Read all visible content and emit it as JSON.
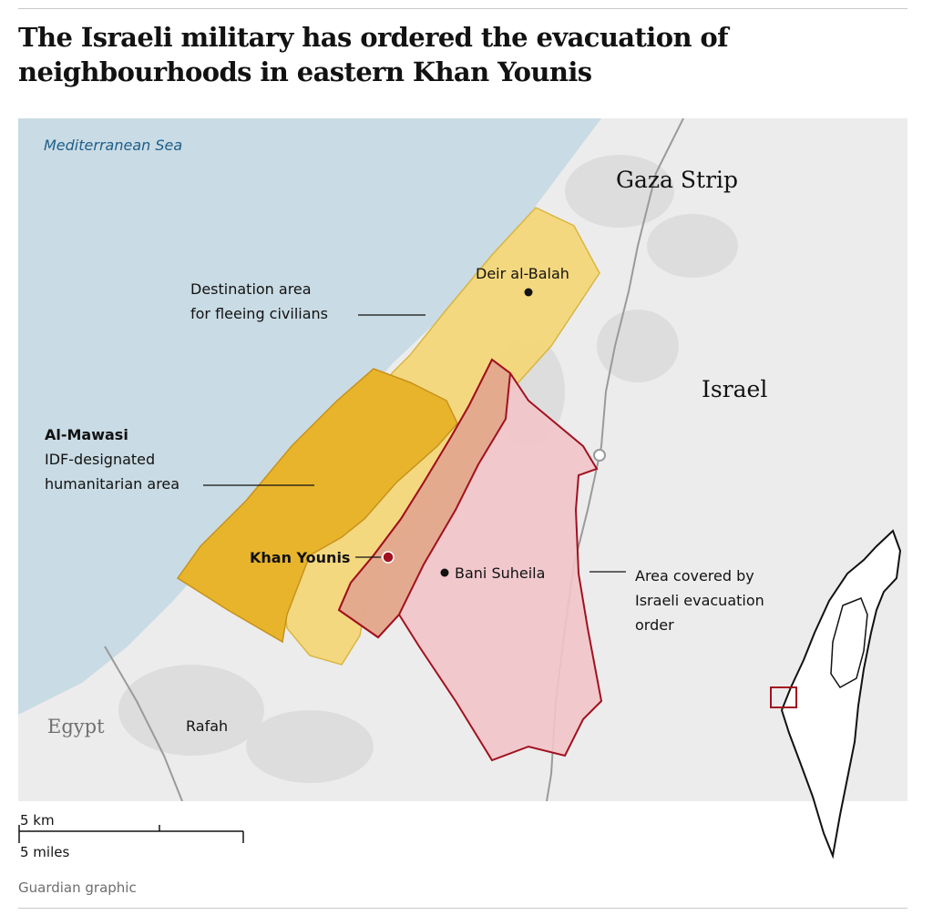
{
  "title": "The Israeli military has ordered the evacuation of neighbourhoods in eastern Khan Younis",
  "map": {
    "sea_label": "Mediterranean Sea",
    "regions": {
      "gaza_strip": "Gaza Strip",
      "israel": "Israel",
      "egypt": "Egypt"
    },
    "places": {
      "deir_al_balah": "Deir al-Balah",
      "khan_younis": "Khan Younis",
      "bani_suheila": "Bani Suheila",
      "rafah": "Rafah"
    },
    "annotations": {
      "destination_line1": "Destination area",
      "destination_line2": "for fleeing civilians",
      "mawasi_title": "Al-Mawasi",
      "mawasi_line2": "IDF-designated",
      "mawasi_line3": "humanitarian area",
      "evac_line1": "Area covered by",
      "evac_line2": "Israeli evacuation",
      "evac_line3": "order"
    },
    "colors": {
      "sea": "#c9dbe4",
      "land": "#ececec",
      "destination_area": "#f5d77a",
      "mawasi_area": "#e8b42c",
      "evacuation_area": "#f2c4c9",
      "evacuation_border": "#a1111f",
      "khan_younis_marker": "#a1111f"
    }
  },
  "scale": {
    "km_label": "5 km",
    "miles_label": "5 miles"
  },
  "source": "Guardian graphic"
}
